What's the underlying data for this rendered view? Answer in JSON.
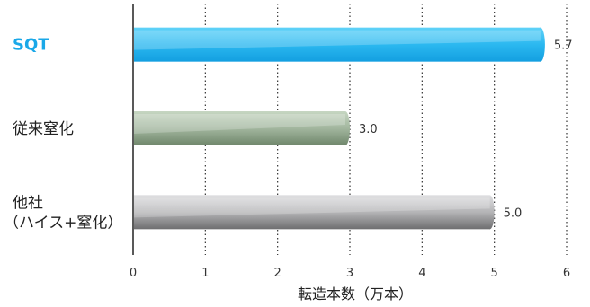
{
  "chart_data": {
    "type": "bar",
    "orientation": "horizontal",
    "categories": [
      {
        "lines": [
          "SQT"
        ],
        "highlight": true
      },
      {
        "lines": [
          "従来窒化"
        ],
        "highlight": false
      },
      {
        "lines": [
          "他社",
          "（ハイス+窒化）"
        ],
        "highlight": false
      }
    ],
    "values": [
      5.7,
      3.0,
      5.0
    ],
    "value_labels": [
      "5.7",
      "3.0",
      "5.0"
    ],
    "xlabel": "転造本数（万本）",
    "xlim": [
      0,
      6
    ],
    "xticks": [
      "0",
      "1",
      "2",
      "3",
      "4",
      "5",
      "6"
    ],
    "grid": "vertical-dotted",
    "colors": {
      "SQT": [
        "#3cc4f5",
        "#15a6e6"
      ],
      "従来窒化": [
        "#b4c7b0",
        "#7b9277"
      ],
      "他社": [
        "#cfcfd1",
        "#7c7c7e"
      ]
    }
  }
}
